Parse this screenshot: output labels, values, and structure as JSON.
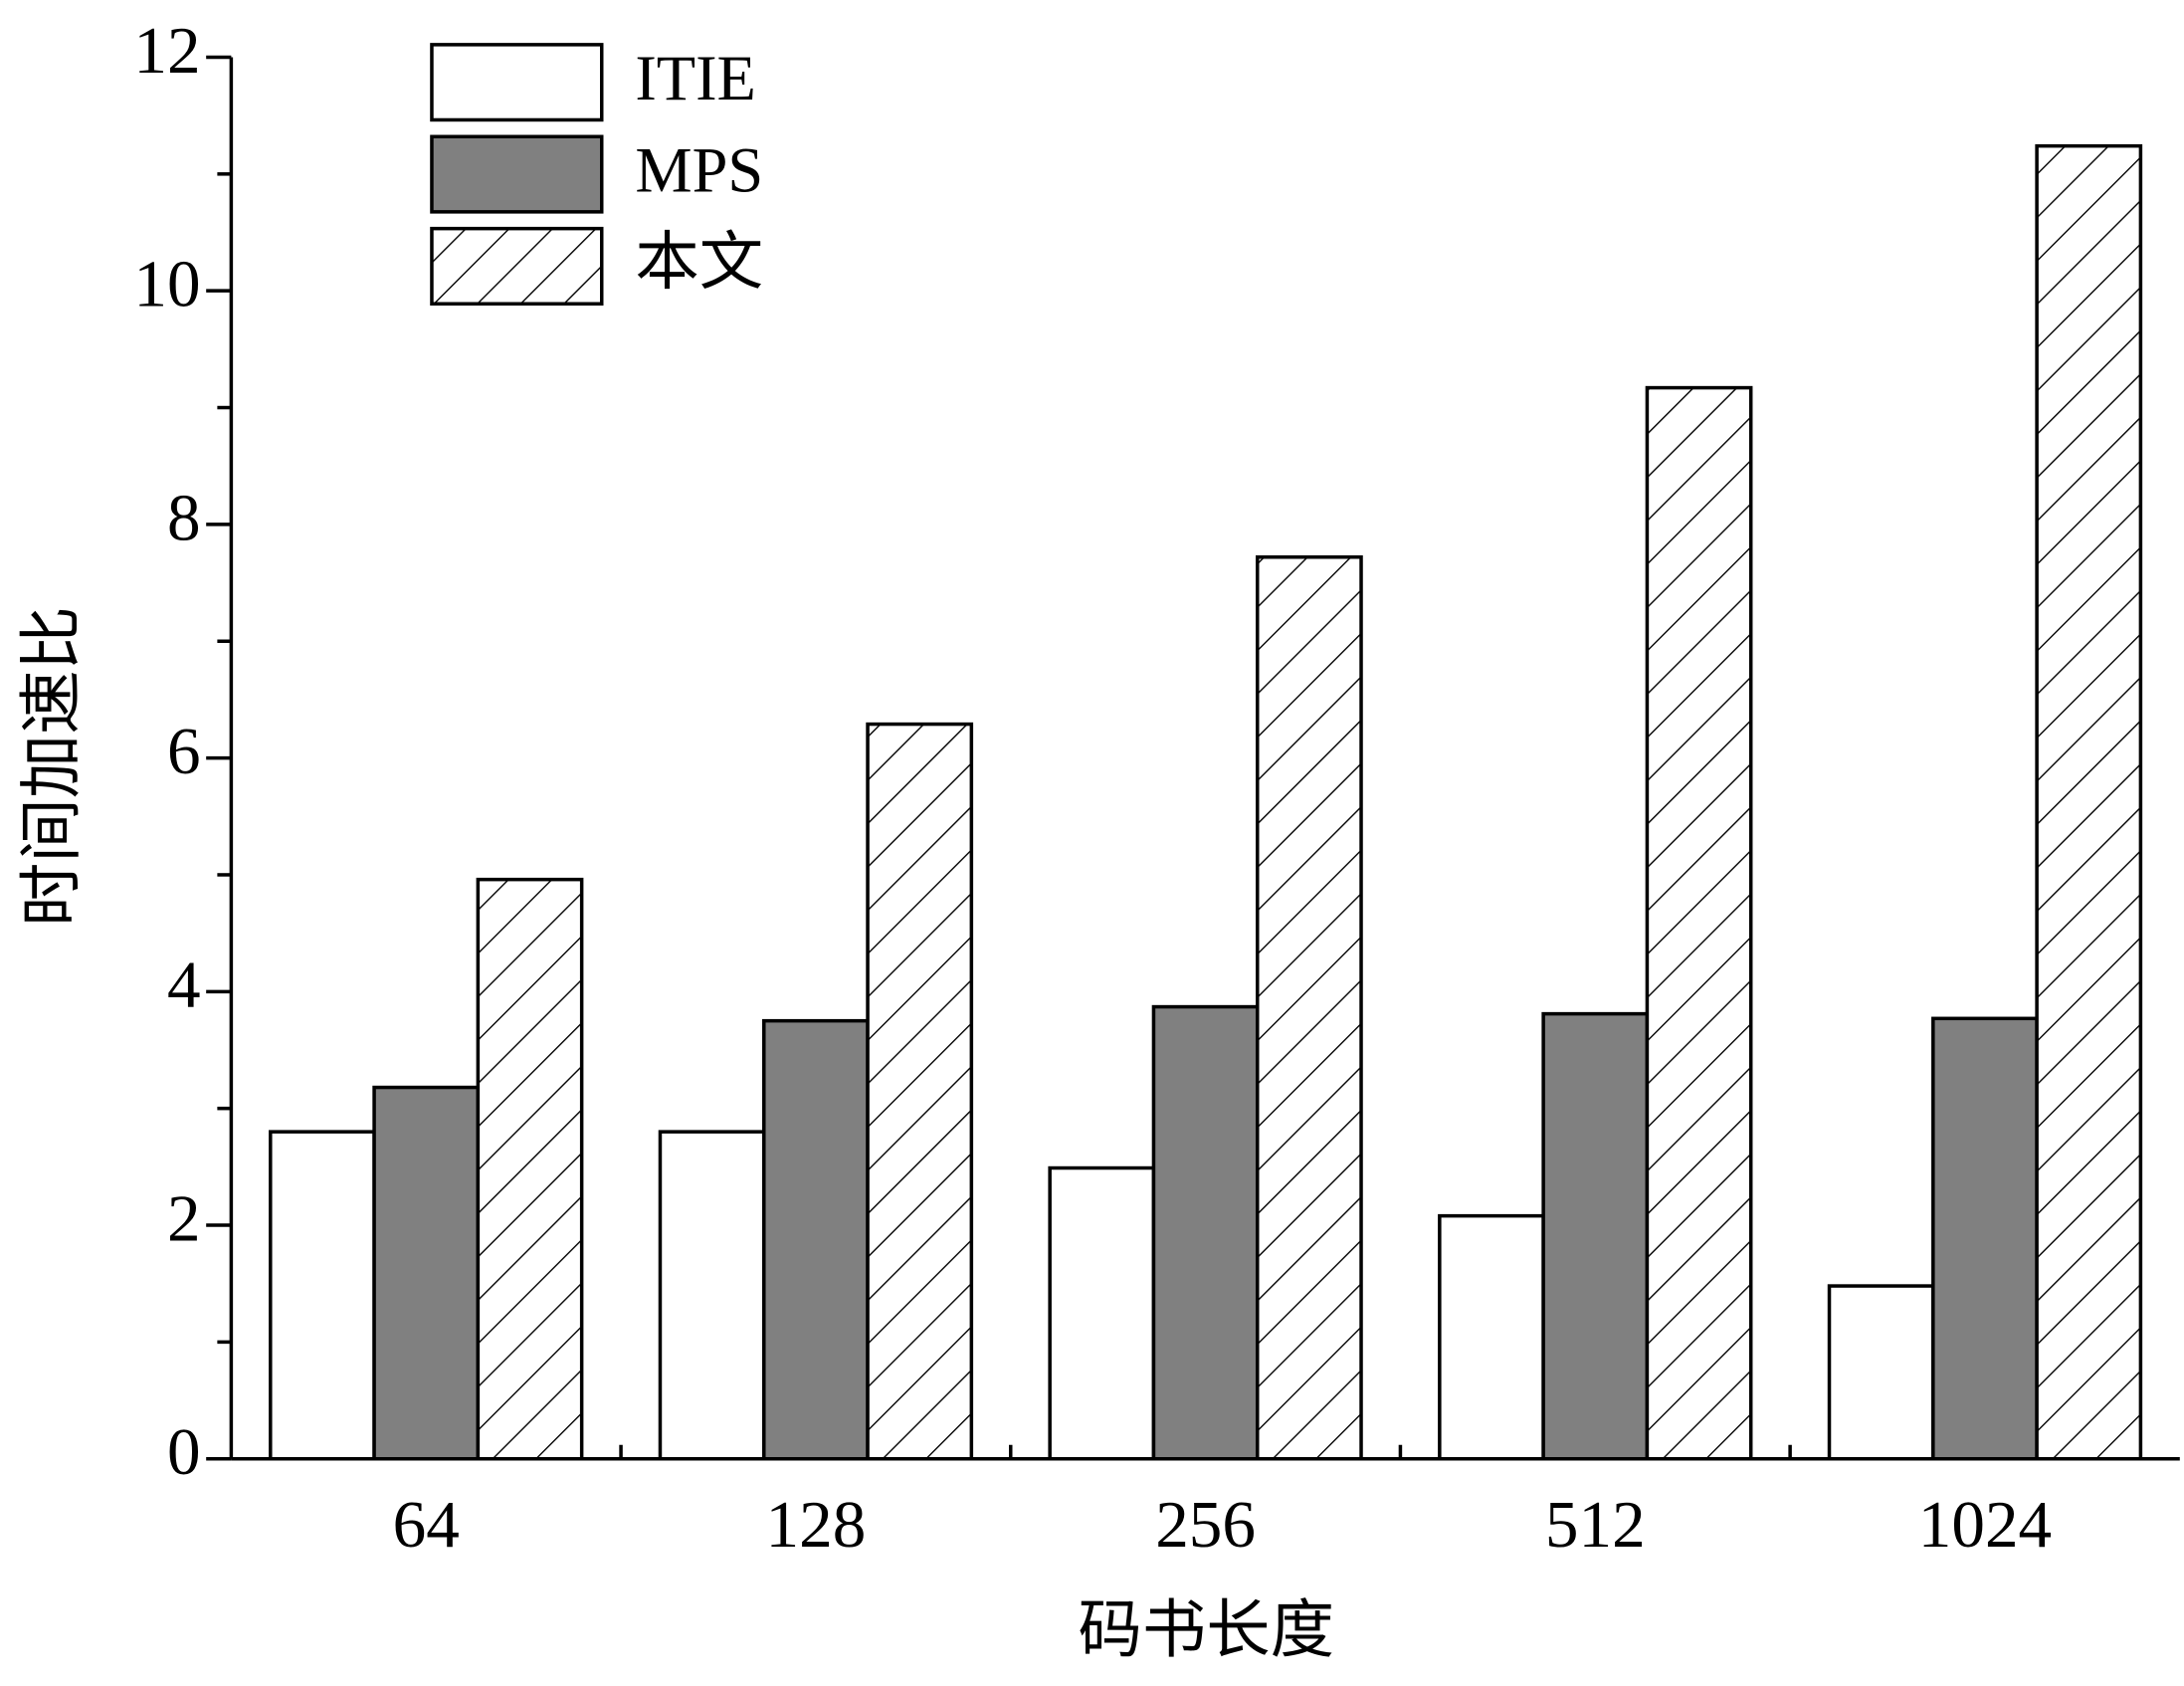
{
  "chart_data": {
    "type": "bar",
    "x_label": "码书长度",
    "y_label": "时间加速比",
    "categories": [
      "64",
      "128",
      "256",
      "512",
      "1024"
    ],
    "series": [
      {
        "name": "ITIE",
        "color": "#ffffff",
        "values": [
          2.8,
          2.8,
          2.49,
          2.08,
          1.48
        ]
      },
      {
        "name": "MPS",
        "color": "#808080",
        "values": [
          3.18,
          3.75,
          3.87,
          3.81,
          3.77
        ]
      },
      {
        "name": "本文",
        "color": "#ffffff",
        "pattern": "hatch",
        "values": [
          4.96,
          6.29,
          7.72,
          9.17,
          11.24
        ]
      }
    ],
    "ylim": [
      0,
      12
    ],
    "yticks": [
      0,
      2,
      4,
      6,
      8,
      10,
      12
    ],
    "legend": "upper left"
  }
}
